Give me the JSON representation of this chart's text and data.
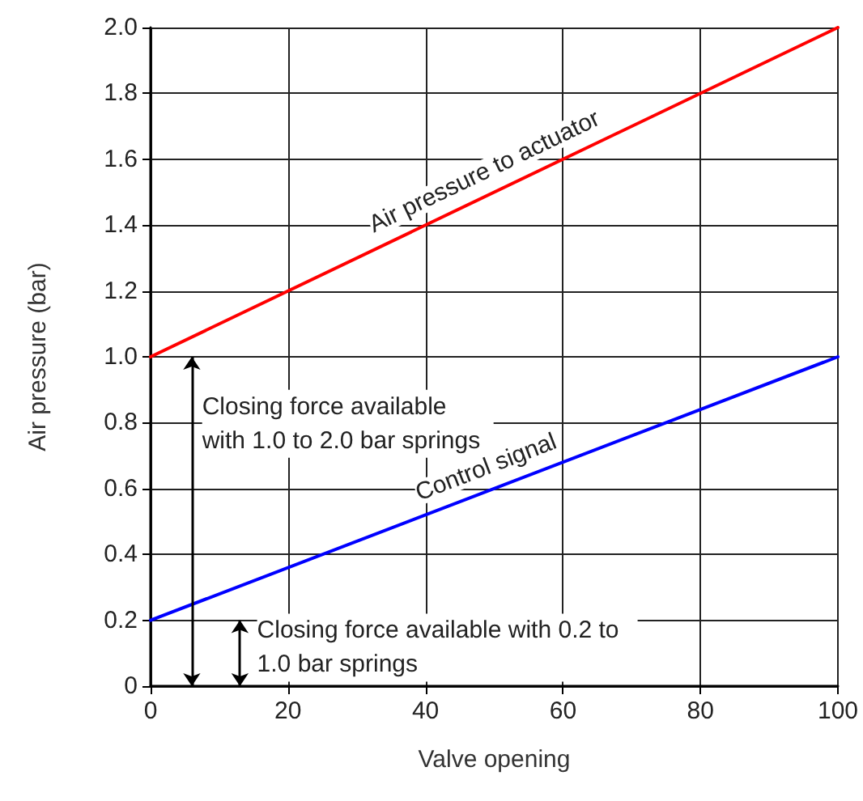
{
  "chart_data": {
    "type": "line",
    "xlabel": "Valve opening",
    "ylabel": "Air pressure (bar)",
    "x": [
      0,
      100
    ],
    "series": [
      {
        "name": "Air pressure to actuator",
        "color": "#ff0000",
        "values": [
          1,
          2
        ]
      },
      {
        "name": "Control signal",
        "color": "#0000ff",
        "values": [
          0.2,
          1
        ]
      }
    ],
    "xlim": [
      0,
      100
    ],
    "xticks": [
      0,
      20,
      40,
      60,
      80,
      100
    ],
    "ylim": [
      0,
      2
    ],
    "yticks": [
      0,
      0.2,
      0.4,
      0.6,
      0.8,
      {
        "value": 1,
        "label": "1.0"
      },
      1.2,
      1.4,
      1.6,
      1.8,
      {
        "value": 2,
        "label": "2.0"
      }
    ],
    "grid": true,
    "legend": false,
    "marker": "none",
    "line_style": "solid",
    "annotations": [
      "Closing force available with 1.0 to 2.0 bar springs",
      "Closing force available with 0.2 to 1.0 bar springs"
    ]
  }
}
